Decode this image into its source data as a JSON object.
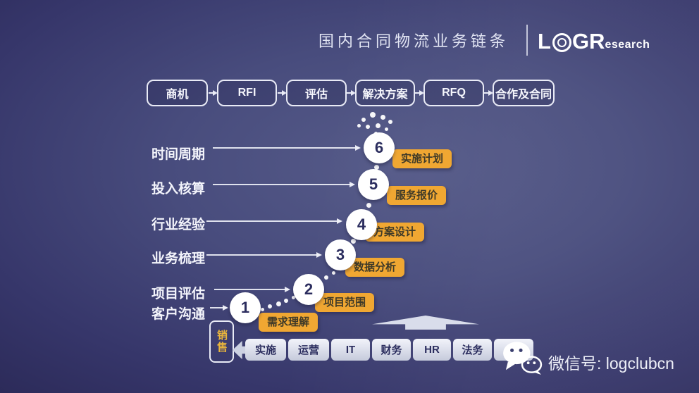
{
  "header": {
    "title": "国内合同物流业务链条",
    "logo_l": "L",
    "logo_gr": "GR",
    "logo_research": "esearch"
  },
  "flow": {
    "steps": [
      "商机",
      "RFI",
      "评估",
      "解决方案",
      "RFQ",
      "合作及合同"
    ]
  },
  "staircase": {
    "rows": [
      {
        "label": "时间周期",
        "number": "6",
        "tag": "实施计划"
      },
      {
        "label": "投入核算",
        "number": "5",
        "tag": "服务报价"
      },
      {
        "label": "行业经验",
        "number": "4",
        "tag": "方案设计"
      },
      {
        "label": "业务梳理",
        "number": "3",
        "tag": "数据分析"
      },
      {
        "label": "项目评估",
        "number": "2",
        "tag": "项目范围"
      },
      {
        "label": "客户沟通",
        "number": "1",
        "tag": "需求理解"
      }
    ]
  },
  "bottom": {
    "sales_label": "销售",
    "departments": [
      "实施",
      "运营",
      "IT",
      "财务",
      "HR",
      "法务",
      ""
    ]
  },
  "footer": {
    "wechat_text": "微信号: logclubcn"
  },
  "colors": {
    "background_center": "#565b89",
    "background_edge": "#272551",
    "accent_orange": "#f0a732",
    "sales_text": "#e8b43c",
    "box_text_navy": "#2b2d5e",
    "white": "#ffffff"
  }
}
